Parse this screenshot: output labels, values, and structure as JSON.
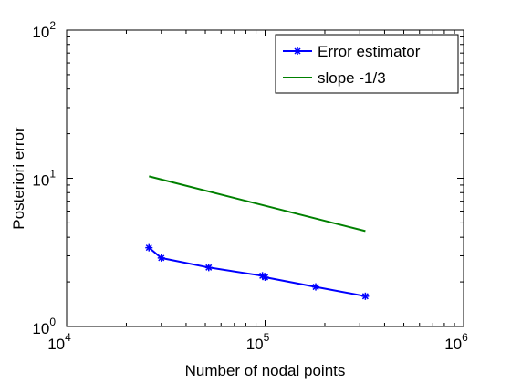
{
  "chart_data": {
    "type": "line",
    "title": "",
    "xlabel": "Number of nodal points",
    "ylabel": "Posteriori error",
    "xscale": "log",
    "yscale": "log",
    "xlim": [
      10000,
      1000000
    ],
    "ylim": [
      1,
      100
    ],
    "grid": false,
    "legend_position": "top-right",
    "x_ticks": [
      {
        "base": "10",
        "exp": "4",
        "value": 10000
      },
      {
        "base": "10",
        "exp": "5",
        "value": 100000
      },
      {
        "base": "10",
        "exp": "6",
        "value": 1000000
      }
    ],
    "y_ticks": [
      {
        "base": "10",
        "exp": "0",
        "value": 1
      },
      {
        "base": "10",
        "exp": "1",
        "value": 10
      },
      {
        "base": "10",
        "exp": "2",
        "value": 100
      }
    ],
    "series": [
      {
        "name": "Error estimator",
        "color": "#0000ff",
        "marker": "star",
        "x": [
          26000,
          30000,
          52000,
          97000,
          100000,
          180000,
          320000
        ],
        "y": [
          3.4,
          2.9,
          2.5,
          2.2,
          2.15,
          1.85,
          1.6
        ]
      },
      {
        "name": "slope -1/3",
        "color": "#008000",
        "marker": "none",
        "x": [
          26000,
          320000
        ],
        "y": [
          10.3,
          4.4
        ]
      }
    ]
  }
}
